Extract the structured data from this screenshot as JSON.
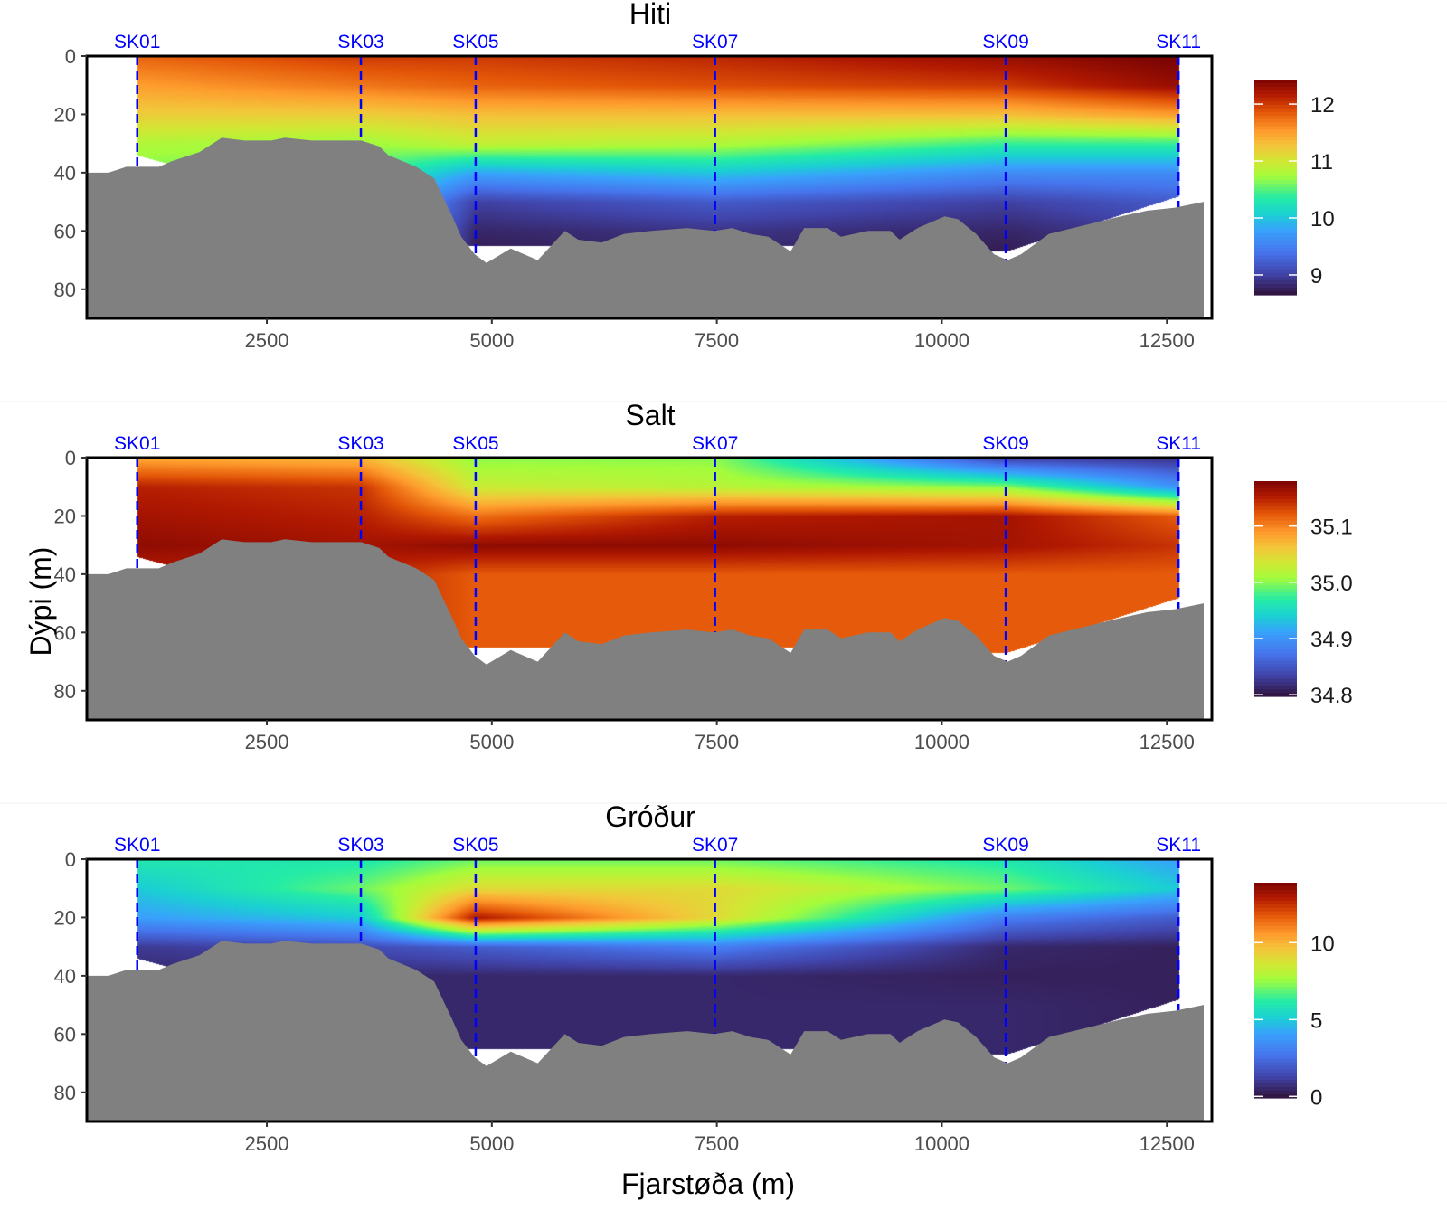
{
  "chart_data": {
    "type": "heatmap",
    "xlabel": "Fjarstøða (m)",
    "ylabel": "Dýpi (m)",
    "xlim": [
      500,
      13000
    ],
    "ylim": [
      90,
      0
    ],
    "x_ticks": [
      "2500",
      "5000",
      "7500",
      "10000",
      "12500"
    ],
    "x_tick_values": [
      2500,
      5000,
      7500,
      10000,
      12500
    ],
    "y_ticks": [
      "0",
      "20",
      "40",
      "60",
      "80"
    ],
    "y_tick_values": [
      0,
      20,
      40,
      60,
      80
    ],
    "stations": [
      {
        "name": "SK01",
        "x": 1060
      },
      {
        "name": "SK03",
        "x": 3545
      },
      {
        "name": "SK05",
        "x": 4820
      },
      {
        "name": "SK07",
        "x": 7480
      },
      {
        "name": "SK09",
        "x": 10710
      },
      {
        "name": "SK11",
        "x": 12630
      }
    ],
    "data_floor": {
      "x": [
        1060,
        1300,
        4700,
        8400,
        10710,
        12630
      ],
      "depth": [
        34,
        36,
        65,
        65,
        67,
        48
      ]
    },
    "bathymetry": {
      "x": [
        500,
        740,
        940,
        1300,
        1450,
        1750,
        2000,
        2250,
        2550,
        2700,
        3000,
        3550,
        3750,
        3850,
        4160,
        4360,
        4560,
        4660,
        4810,
        4940,
        5210,
        5510,
        5810,
        5960,
        6220,
        6470,
        6770,
        7170,
        7470,
        7670,
        7870,
        8070,
        8320,
        8470,
        8730,
        8880,
        9180,
        9430,
        9530,
        9730,
        10030,
        10180,
        10380,
        10580,
        10730,
        10880,
        11190,
        11590,
        11990,
        12290,
        12590,
        12910
      ],
      "depth": [
        40,
        40,
        38,
        38,
        36,
        33,
        28,
        29,
        29,
        28,
        29,
        29,
        31,
        34,
        38,
        42,
        55,
        62,
        68,
        71,
        66,
        70,
        60,
        63,
        64,
        61,
        60,
        59,
        60,
        59,
        61,
        62,
        67,
        59,
        59,
        62,
        60,
        60,
        63,
        59,
        55,
        56,
        61,
        68,
        70,
        68,
        61,
        58,
        55,
        53,
        52,
        50
      ]
    },
    "depths": [
      0,
      10,
      20,
      30,
      40,
      50,
      60,
      70
    ],
    "panels": [
      {
        "title": "Hiti",
        "colorbar": {
          "min": 8.65,
          "max": 12.43,
          "ticks": [
            "9",
            "10",
            "11",
            "12"
          ],
          "tick_values": [
            9,
            10,
            11,
            12
          ]
        },
        "values": [
          [
            11.8,
            11.5,
            11.2,
            10.8,
            10.6,
            10.6,
            10.6,
            10.6
          ],
          [
            12.0,
            11.7,
            11.2,
            10.7,
            10.5,
            10.3,
            10.3,
            10.3
          ],
          [
            12.0,
            11.8,
            11.3,
            10.9,
            9.8,
            9.0,
            8.8,
            8.7
          ],
          [
            12.1,
            11.9,
            11.3,
            10.8,
            10.0,
            9.2,
            8.9,
            8.8
          ],
          [
            12.3,
            12.0,
            11.3,
            10.4,
            9.6,
            9.0,
            8.8,
            8.7
          ],
          [
            12.45,
            12.3,
            11.5,
            10.4,
            9.6,
            9.2,
            9.0,
            9.0
          ]
        ]
      },
      {
        "title": "Salt",
        "colorbar": {
          "min": 34.797,
          "max": 35.18,
          "ticks": [
            "34.8",
            "34.9",
            "35.0",
            "35.1"
          ],
          "tick_values": [
            34.8,
            34.9,
            35.0,
            35.1
          ]
        },
        "values": [
          [
            35.08,
            35.15,
            35.16,
            35.17,
            35.15,
            35.15,
            35.15,
            35.15
          ],
          [
            35.07,
            35.14,
            35.15,
            35.16,
            35.15,
            35.15,
            35.15,
            35.15
          ],
          [
            35.0,
            35.03,
            35.11,
            35.17,
            35.12,
            35.12,
            35.12,
            35.12
          ],
          [
            35.0,
            35.02,
            35.15,
            35.17,
            35.12,
            35.12,
            35.12,
            35.12
          ],
          [
            34.83,
            35.0,
            35.16,
            35.16,
            35.12,
            35.12,
            35.12,
            35.12
          ],
          [
            34.82,
            34.9,
            35.12,
            35.14,
            35.12,
            35.12,
            35.12,
            35.12
          ]
        ]
      },
      {
        "title": "Gróður",
        "colorbar": {
          "min": -0.1,
          "max": 13.9,
          "ticks": [
            "0",
            "5",
            "10"
          ],
          "tick_values": [
            0,
            5,
            10
          ]
        },
        "values": [
          [
            6,
            5,
            4,
            1,
            0.5,
            0.5,
            0.5,
            0.5
          ],
          [
            6,
            7,
            5,
            1.5,
            0.5,
            0.5,
            0.5,
            0.5
          ],
          [
            7,
            9,
            13,
            2,
            0.5,
            0.5,
            0.5,
            0.5
          ],
          [
            7,
            9,
            9,
            3,
            0.5,
            0.5,
            0.5,
            0.5
          ],
          [
            6,
            7,
            3,
            0.5,
            0.3,
            0.5,
            0.5,
            0.5
          ],
          [
            4,
            5,
            2,
            0.3,
            0.3,
            0.3,
            0.3,
            0.3
          ]
        ]
      }
    ]
  },
  "colors": {
    "station_line": "#0000ff",
    "seabed": "#808080",
    "frame": "#000000"
  }
}
